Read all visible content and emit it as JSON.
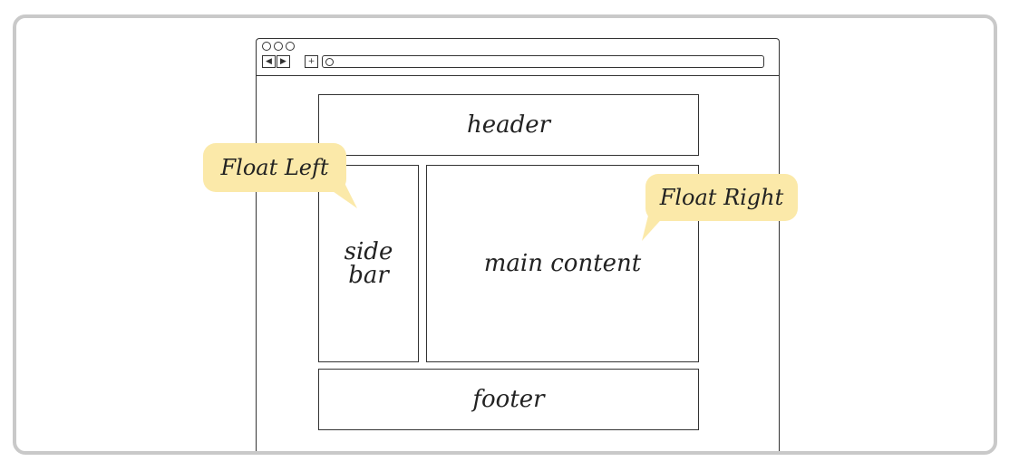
{
  "diagram": {
    "layout": {
      "header": "header",
      "sidebar_line1": "side",
      "sidebar_line2": "bar",
      "main": "main content",
      "footer": "footer"
    },
    "callouts": {
      "left": "Float Left",
      "right": "Float Right"
    },
    "colors": {
      "callout_fill": "#fbe9a9",
      "frame_border": "#c9c9c9",
      "stroke": "#333333"
    }
  }
}
